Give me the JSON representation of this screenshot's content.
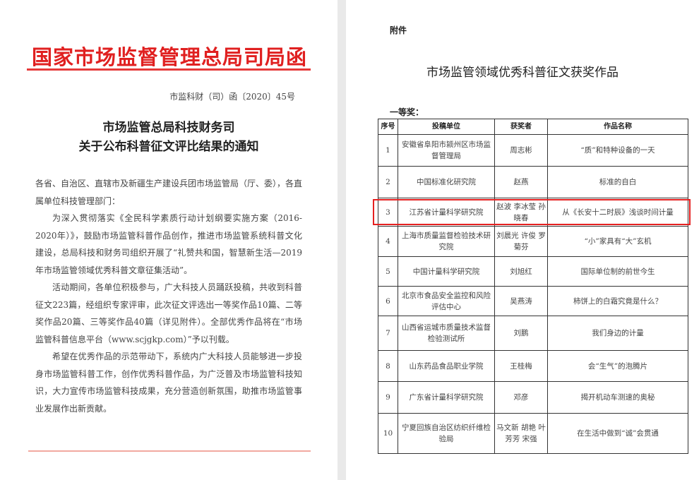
{
  "left_page": {
    "letterhead": "国家市场监督管理总局司局函",
    "doc_number": "市监科财（司）函〔2020〕45号",
    "title_lines": [
      "市场监管总局科技财务司",
      "关于公布科普征文评比结果的通知"
    ],
    "salutation": "各省、自治区、直辖市及新疆生产建设兵团市场监管局（厅、委），各直属单位科技管理部门：",
    "paragraphs": [
      "为深入贯彻落实《全民科学素质行动计划纲要实施方案（2016-2020年）》，鼓励市场监管科普作品创作，推进市场监管系统科普文化建设，总局科技和财务司组织开展了“礼赞共和国，智慧新生活—2019年市场监管领域优秀科普文章征集活动”。",
      "活动期间，各单位积极参与，广大科技人员踊跃投稿，共收到科普征文223篇，经组织专家评审，此次征文评选出一等奖作品10篇、二等奖作品20篇、三等奖作品40篇（详见附件）。全部优秀作品将在“市场监管科普信息平台（www.scjgkp.com）”予以刊载。",
      "希望在优秀作品的示范带动下，系统内广大科技人员能够进一步投身市场监管科普工作，创作优秀科普作品，为广泛普及市场监管科技知识，大力宣传市场监管科技成果，充分营造创新氛围，助推市场监管事业发展作出新贡献。"
    ]
  },
  "right_page": {
    "attachment_label": "附件",
    "title": "市场监管领域优秀科普征文获奖作品",
    "prize_level": "一等奖：",
    "columns": [
      "序号",
      "投稿单位",
      "获奖者",
      "作品名称"
    ],
    "highlight_color": "#e52020",
    "rows": [
      [
        "1",
        "安徽省阜阳市颍州区市场监督管理局",
        "周志彬",
        "“质”和特种设备的一天"
      ],
      [
        "2",
        "中国标准化研究院",
        "赵燕",
        "标准的自白"
      ],
      [
        "3",
        "江苏省计量科学研究院",
        "赵波 李冰莹 孙晓春",
        "从《长安十二时辰》浅谈时间计量"
      ],
      [
        "4",
        "上海市质量监督检验技术研究院",
        "刘晨光 许俊 罗菊芬",
        "“小”家具有“大”玄机"
      ],
      [
        "5",
        "中国计量科学研究院",
        "刘旭红",
        "国际单位制的前世今生"
      ],
      [
        "6",
        "北京市食品安全监控和风险评估中心",
        "吴燕涛",
        "柿饼上的白霜究竟是什么？"
      ],
      [
        "7",
        "山西省运城市质量技术监督检验测试所",
        "刘鹏",
        "我们身边的计量"
      ],
      [
        "8",
        "山东药品食品职业学院",
        "王桂梅",
        "会“生气”的泡腾片"
      ],
      [
        "9",
        "广东省计量科学研究院",
        "邓彦",
        "揭开机动车测速的奥秘"
      ],
      [
        "10",
        "宁夏回族自治区纺织纤维检验局",
        "马文新 胡艳 叶芳芳 宋强",
        "在生活中做到“诚”会贯通"
      ]
    ]
  }
}
